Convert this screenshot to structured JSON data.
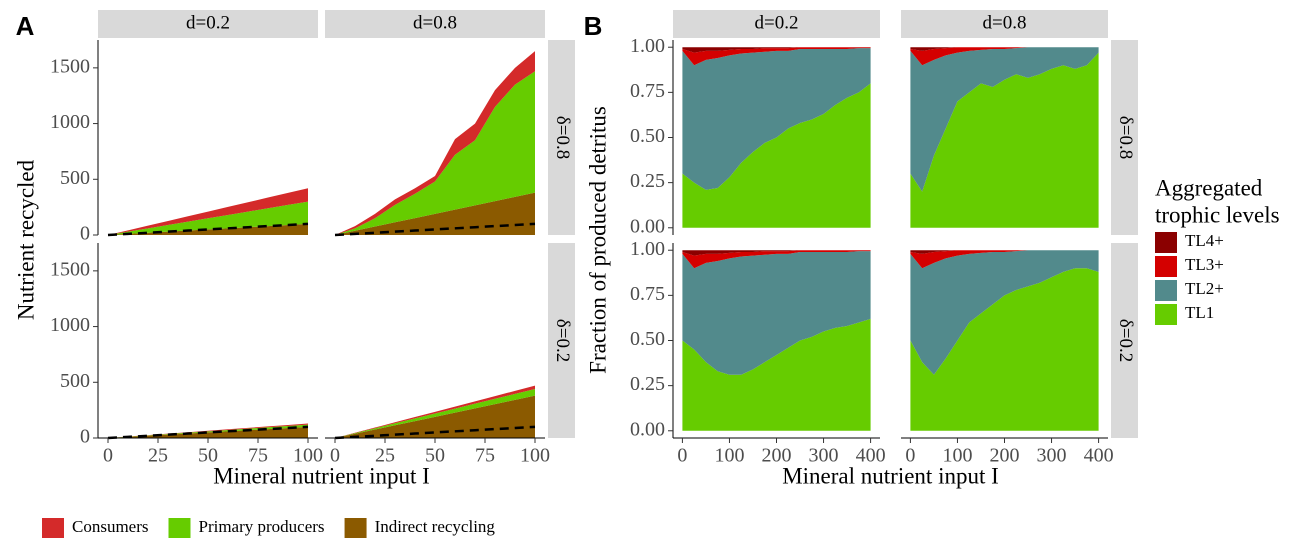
{
  "chart_data": [
    {
      "type": "area",
      "panel_label": "A",
      "y_label": "Nutrient recycled",
      "x_label": "Mineral nutrient input I",
      "col_labels": [
        "d=0.2",
        "d=0.8"
      ],
      "row_labels": [
        "δ=0.8",
        "δ=0.2"
      ],
      "xlim": [
        -5,
        105
      ],
      "xticks": [
        0,
        25,
        50,
        75,
        100
      ],
      "ylim": [
        0,
        1750
      ],
      "yticks": [
        0,
        500,
        1000,
        1500
      ],
      "legend": "bottom",
      "series": [
        {
          "name": "Consumers",
          "color": "#d42a2a"
        },
        {
          "name": "Primary producers",
          "color": "#66cc00"
        },
        {
          "name": "Indirect recycling",
          "color": "#8b5a00"
        }
      ],
      "x": [
        0,
        10,
        20,
        30,
        40,
        50,
        60,
        70,
        80,
        90,
        100
      ],
      "facets": [
        {
          "values": [
            [
              0,
              12,
              24,
              36,
              48,
              60,
              72,
              84,
              96,
              108,
              120
            ],
            [
              0,
              20,
              40,
              60,
              80,
              100,
              120,
              140,
              160,
              180,
              200
            ],
            [
              0,
              10,
              20,
              30,
              40,
              50,
              60,
              70,
              80,
              90,
              100
            ]
          ],
          "dashed": [
            0,
            10,
            20,
            30,
            40,
            50,
            60,
            70,
            80,
            90,
            100
          ]
        },
        {
          "values": [
            [
              0,
              20,
              40,
              50,
              50,
              50,
              140,
              150,
              150,
              150,
              180
            ],
            [
              0,
              22,
              74,
              156,
              218,
              290,
              492,
              584,
              846,
              1008,
              1090
            ],
            [
              0,
              38,
              76,
              114,
              152,
              190,
              228,
              266,
              304,
              342,
              380
            ]
          ],
          "dashed": [
            0,
            10,
            20,
            30,
            40,
            50,
            60,
            70,
            80,
            90,
            100
          ]
        },
        {
          "values": [
            [
              0,
              1,
              2,
              3,
              4,
              5,
              6,
              7,
              8,
              9,
              10
            ],
            [
              0,
              2,
              4,
              6,
              8,
              10,
              12,
              14,
              16,
              18,
              20
            ],
            [
              0,
              10,
              20,
              30,
              40,
              50,
              60,
              70,
              80,
              90,
              100
            ]
          ],
          "dashed": [
            0,
            10,
            20,
            30,
            40,
            50,
            60,
            70,
            80,
            90,
            100
          ]
        },
        {
          "values": [
            [
              0,
              3,
              6,
              9,
              12,
              15,
              18,
              21,
              24,
              27,
              30
            ],
            [
              0,
              6,
              12,
              18,
              24,
              30,
              36,
              42,
              48,
              54,
              60
            ],
            [
              0,
              38,
              76,
              114,
              152,
              190,
              228,
              266,
              304,
              342,
              380
            ]
          ],
          "dashed": [
            0,
            10,
            20,
            30,
            40,
            50,
            60,
            70,
            80,
            90,
            100
          ]
        }
      ]
    },
    {
      "type": "area",
      "panel_label": "B",
      "y_label": "Fraction of produced detritus",
      "x_label": "Mineral nutrient input I",
      "col_labels": [
        "d=0.2",
        "d=0.8"
      ],
      "row_labels": [
        "δ=0.8",
        "δ=0.2"
      ],
      "xlim": [
        -20,
        420
      ],
      "xticks": [
        0,
        100,
        200,
        300,
        400
      ],
      "ylim": [
        -0.04,
        1.04
      ],
      "yticks": [
        {
          "value": 0,
          "label": "0.00"
        },
        {
          "value": 0.25,
          "label": "0.25"
        },
        {
          "value": 0.5,
          "label": "0.50"
        },
        {
          "value": 0.75,
          "label": "0.75"
        },
        {
          "value": 1,
          "label": "1.00"
        }
      ],
      "legend": "right",
      "legend_title": [
        "Aggregated",
        "trophic levels"
      ],
      "series": [
        {
          "name": "TL4+",
          "color": "#8b0000"
        },
        {
          "name": "TL3+",
          "color": "#d40000"
        },
        {
          "name": "TL2+",
          "color": "#528a8c"
        },
        {
          "name": "TL1",
          "color": "#66cc00"
        }
      ],
      "x": [
        0,
        25,
        50,
        75,
        100,
        125,
        150,
        175,
        200,
        225,
        250,
        275,
        300,
        325,
        350,
        375,
        400
      ],
      "facets": [
        {
          "values": [
            [
              0.01,
              0.03,
              0.02,
              0.02,
              0.015,
              0.01,
              0.01,
              0.005,
              0.005,
              0.005,
              0,
              0,
              0,
              0,
              0,
              0,
              0
            ],
            [
              0.01,
              0.07,
              0.05,
              0.04,
              0.03,
              0.025,
              0.02,
              0.02,
              0.015,
              0.015,
              0.01,
              0.01,
              0.01,
              0.01,
              0.01,
              0.005,
              0.005
            ],
            [
              0.68,
              0.65,
              0.72,
              0.72,
              0.675,
              0.605,
              0.55,
              0.505,
              0.48,
              0.43,
              0.41,
              0.39,
              0.36,
              0.31,
              0.27,
              0.245,
              0.195
            ],
            [
              0.3,
              0.25,
              0.21,
              0.22,
              0.28,
              0.36,
              0.42,
              0.47,
              0.5,
              0.55,
              0.58,
              0.6,
              0.63,
              0.68,
              0.72,
              0.75,
              0.8
            ]
          ]
        },
        {
          "values": [
            [
              0.01,
              0.02,
              0.01,
              0.005,
              0,
              0,
              0,
              0,
              0,
              0,
              0,
              0,
              0,
              0,
              0,
              0,
              0
            ],
            [
              0.01,
              0.08,
              0.06,
              0.04,
              0.03,
              0.02,
              0.015,
              0.01,
              0.01,
              0.005,
              0,
              0,
              0,
              0,
              0,
              0,
              0
            ],
            [
              0.68,
              0.7,
              0.53,
              0.405,
              0.27,
              0.23,
              0.185,
              0.21,
              0.17,
              0.145,
              0.17,
              0.15,
              0.12,
              0.1,
              0.12,
              0.1,
              0.03
            ],
            [
              0.3,
              0.2,
              0.4,
              0.55,
              0.7,
              0.75,
              0.8,
              0.78,
              0.82,
              0.85,
              0.83,
              0.85,
              0.88,
              0.9,
              0.88,
              0.9,
              0.97
            ]
          ]
        },
        {
          "values": [
            [
              0.01,
              0.03,
              0.02,
              0.02,
              0.015,
              0.01,
              0.01,
              0.005,
              0.005,
              0.005,
              0,
              0,
              0,
              0,
              0,
              0,
              0
            ],
            [
              0.01,
              0.07,
              0.05,
              0.04,
              0.03,
              0.025,
              0.02,
              0.02,
              0.015,
              0.015,
              0.01,
              0.01,
              0.01,
              0.01,
              0.01,
              0.005,
              0.005
            ],
            [
              0.48,
              0.45,
              0.55,
              0.61,
              0.645,
              0.655,
              0.63,
              0.595,
              0.56,
              0.52,
              0.49,
              0.47,
              0.44,
              0.42,
              0.41,
              0.395,
              0.375
            ],
            [
              0.5,
              0.45,
              0.38,
              0.33,
              0.31,
              0.31,
              0.34,
              0.38,
              0.42,
              0.46,
              0.5,
              0.52,
              0.55,
              0.57,
              0.58,
              0.6,
              0.62
            ]
          ]
        },
        {
          "values": [
            [
              0.01,
              0.02,
              0.01,
              0.005,
              0,
              0,
              0,
              0,
              0,
              0,
              0,
              0,
              0,
              0,
              0,
              0,
              0
            ],
            [
              0.01,
              0.08,
              0.06,
              0.04,
              0.03,
              0.02,
              0.015,
              0.01,
              0.01,
              0.005,
              0,
              0,
              0,
              0,
              0,
              0,
              0
            ],
            [
              0.48,
              0.52,
              0.62,
              0.555,
              0.47,
              0.38,
              0.335,
              0.29,
              0.24,
              0.215,
              0.2,
              0.18,
              0.15,
              0.12,
              0.1,
              0.1,
              0.12
            ],
            [
              0.5,
              0.38,
              0.31,
              0.4,
              0.5,
              0.6,
              0.65,
              0.7,
              0.75,
              0.78,
              0.8,
              0.82,
              0.85,
              0.88,
              0.9,
              0.9,
              0.88
            ]
          ]
        }
      ]
    }
  ]
}
